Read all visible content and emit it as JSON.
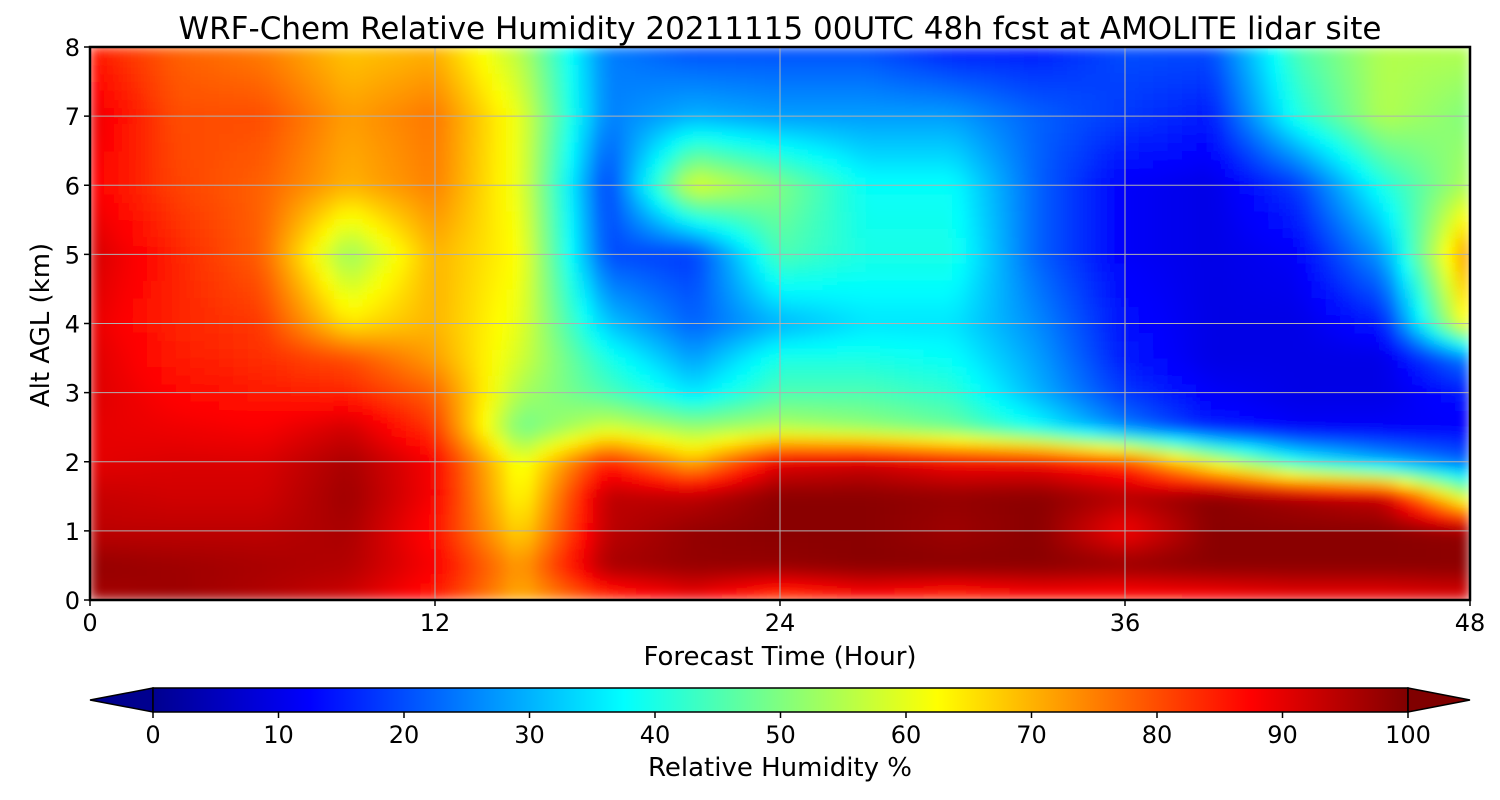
{
  "chart_data": {
    "type": "heatmap",
    "title": "WRF-Chem Relative Humidity 20211115 00UTC 48h fcst at AMOLITE lidar site",
    "xlabel": "Forecast Time (Hour)",
    "ylabel": "Alt AGL (km)",
    "xlim": [
      0,
      48
    ],
    "ylim": [
      0,
      8
    ],
    "x_ticks": [
      "0",
      "12",
      "24",
      "36",
      "48"
    ],
    "y_ticks": [
      "0",
      "1",
      "2",
      "3",
      "4",
      "5",
      "6",
      "7",
      "8"
    ],
    "grid": true,
    "colorscale": "jet",
    "colorbar": {
      "label": "Relative Humidity %",
      "range": [
        0,
        100
      ],
      "ticks": [
        "0",
        "10",
        "20",
        "30",
        "40",
        "50",
        "60",
        "70",
        "80",
        "90",
        "100"
      ],
      "extend": "both",
      "orientation": "horizontal"
    },
    "x": [
      0,
      3,
      6,
      9,
      12,
      15,
      18,
      21,
      24,
      27,
      30,
      33,
      36,
      39,
      42,
      45,
      48
    ],
    "y": [
      0,
      0.5,
      1,
      1.5,
      2,
      2.5,
      3,
      3.5,
      4,
      5,
      6,
      7,
      8
    ],
    "z": [
      [
        96,
        97,
        95,
        92,
        85,
        70,
        82,
        88,
        80,
        85,
        82,
        85,
        84,
        86,
        88,
        88,
        90
      ],
      [
        98,
        97,
        96,
        95,
        88,
        72,
        96,
        98,
        98,
        99,
        99,
        99,
        98,
        99,
        99,
        99,
        99
      ],
      [
        94,
        94,
        94,
        96,
        86,
        66,
        94,
        98,
        99,
        99,
        97,
        99,
        88,
        99,
        99,
        99,
        98
      ],
      [
        93,
        92,
        92,
        97,
        88,
        62,
        94,
        94,
        99,
        99,
        98,
        99,
        95,
        99,
        96,
        93,
        55
      ],
      [
        90,
        91,
        91,
        96,
        88,
        60,
        85,
        70,
        90,
        92,
        88,
        88,
        82,
        60,
        40,
        30,
        22
      ],
      [
        90,
        89,
        88,
        92,
        82,
        48,
        58,
        52,
        55,
        52,
        48,
        38,
        25,
        15,
        12,
        12,
        12
      ],
      [
        91,
        87,
        85,
        84,
        78,
        54,
        45,
        35,
        45,
        45,
        42,
        30,
        18,
        12,
        10,
        10,
        15
      ],
      [
        91,
        85,
        83,
        80,
        72,
        58,
        40,
        28,
        40,
        40,
        38,
        28,
        15,
        10,
        10,
        10,
        25
      ],
      [
        90,
        84,
        82,
        65,
        70,
        60,
        32,
        22,
        30,
        35,
        35,
        26,
        14,
        10,
        10,
        15,
        65
      ],
      [
        92,
        84,
        78,
        52,
        70,
        62,
        20,
        18,
        45,
        40,
        40,
        22,
        12,
        10,
        12,
        28,
        75
      ],
      [
        88,
        81,
        78,
        70,
        75,
        60,
        18,
        60,
        50,
        38,
        38,
        22,
        12,
        10,
        18,
        40,
        55
      ],
      [
        90,
        80,
        80,
        72,
        76,
        60,
        25,
        30,
        28,
        28,
        28,
        22,
        18,
        15,
        40,
        55,
        50
      ],
      [
        85,
        78,
        75,
        68,
        70,
        55,
        25,
        20,
        20,
        20,
        15,
        15,
        20,
        20,
        45,
        55,
        55
      ]
    ]
  }
}
